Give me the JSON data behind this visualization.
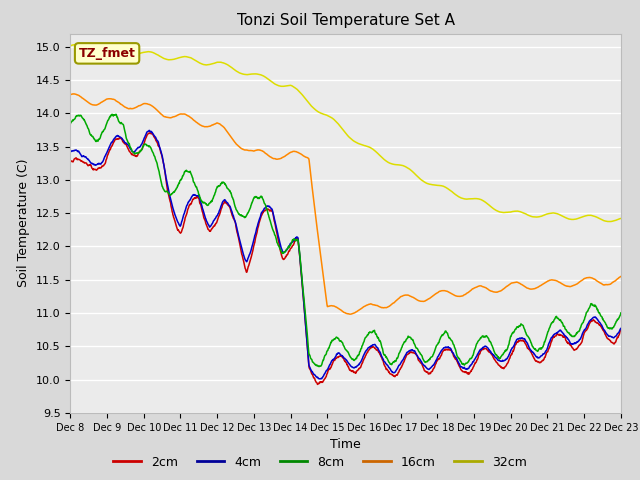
{
  "title": "Tonzi Soil Temperature Set A",
  "xlabel": "Time",
  "ylabel": "Soil Temperature (C)",
  "ylim": [
    9.5,
    15.2
  ],
  "x_tick_labels": [
    "Dec 8",
    "Dec 9",
    "Dec 10",
    "Dec 11",
    "Dec 12",
    "Dec 13",
    "Dec 14",
    "Dec 15",
    "Dec 16",
    "Dec 17",
    "Dec 18",
    "Dec 19",
    "Dec 20",
    "Dec 21",
    "Dec 22",
    "Dec 23"
  ],
  "background_color": "#d9d9d9",
  "plot_bg_color": "#ebebeb",
  "legend_label": "TZ_fmet",
  "series_colors": {
    "2cm": "#cc0000",
    "4cm": "#0000cc",
    "8cm": "#00aa00",
    "16cm": "#ff8800",
    "32cm": "#dddd00"
  },
  "legend_colors": {
    "2cm": "#cc0000",
    "4cm": "#000099",
    "8cm": "#008800",
    "16cm": "#cc6600",
    "32cm": "#aaaa00"
  },
  "yticks": [
    9.5,
    10.0,
    10.5,
    11.0,
    11.5,
    12.0,
    12.5,
    13.0,
    13.5,
    14.0,
    14.5,
    15.0
  ]
}
